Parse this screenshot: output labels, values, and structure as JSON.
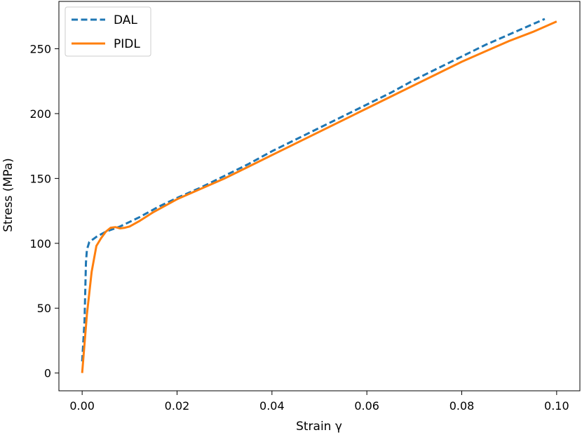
{
  "chart_data": {
    "type": "line",
    "xlabel": "Strain γ",
    "ylabel": "Stress (MPa)",
    "xlim": [
      -0.0049,
      0.1049
    ],
    "ylim": [
      -13.7,
      286.5
    ],
    "xticks": [
      0.0,
      0.02,
      0.04,
      0.06,
      0.08,
      0.1
    ],
    "xtick_labels": [
      "0.00",
      "0.02",
      "0.04",
      "0.06",
      "0.08",
      "0.10"
    ],
    "yticks": [
      0,
      50,
      100,
      150,
      200,
      250
    ],
    "ytick_labels": [
      "0",
      "50",
      "100",
      "150",
      "200",
      "250"
    ],
    "grid": false,
    "legend_position": "top-left",
    "series": [
      {
        "name": "DAL",
        "color": "#1f77b4",
        "dash": "dashed",
        "x": [
          0.0,
          0.0005,
          0.0008,
          0.001,
          0.0015,
          0.003,
          0.005,
          0.008,
          0.012,
          0.016,
          0.02,
          0.025,
          0.03,
          0.035,
          0.04,
          0.045,
          0.05,
          0.055,
          0.06,
          0.065,
          0.07,
          0.075,
          0.08,
          0.085,
          0.09,
          0.095,
          0.0975
        ],
        "y": [
          9,
          40,
          85,
          95,
          101,
          105,
          109,
          113,
          120,
          128,
          135,
          143,
          152,
          161,
          171,
          180,
          189,
          198,
          207,
          216,
          226,
          235,
          244,
          253,
          261,
          269,
          273
        ]
      },
      {
        "name": "PIDL",
        "color": "#ff7f0e",
        "dash": "solid",
        "x": [
          0.0,
          0.001,
          0.002,
          0.003,
          0.004,
          0.005,
          0.006,
          0.007,
          0.008,
          0.009,
          0.01,
          0.012,
          0.015,
          0.02,
          0.025,
          0.03,
          0.035,
          0.04,
          0.045,
          0.05,
          0.055,
          0.06,
          0.065,
          0.07,
          0.075,
          0.08,
          0.085,
          0.09,
          0.095,
          0.1
        ],
        "y": [
          0,
          45,
          78,
          98,
          104,
          109,
          112,
          112.5,
          111.5,
          112,
          113,
          117,
          124,
          134,
          142,
          150,
          159,
          168,
          177,
          186,
          195,
          204,
          213,
          222,
          231,
          240,
          248,
          256,
          263,
          271
        ]
      }
    ]
  }
}
